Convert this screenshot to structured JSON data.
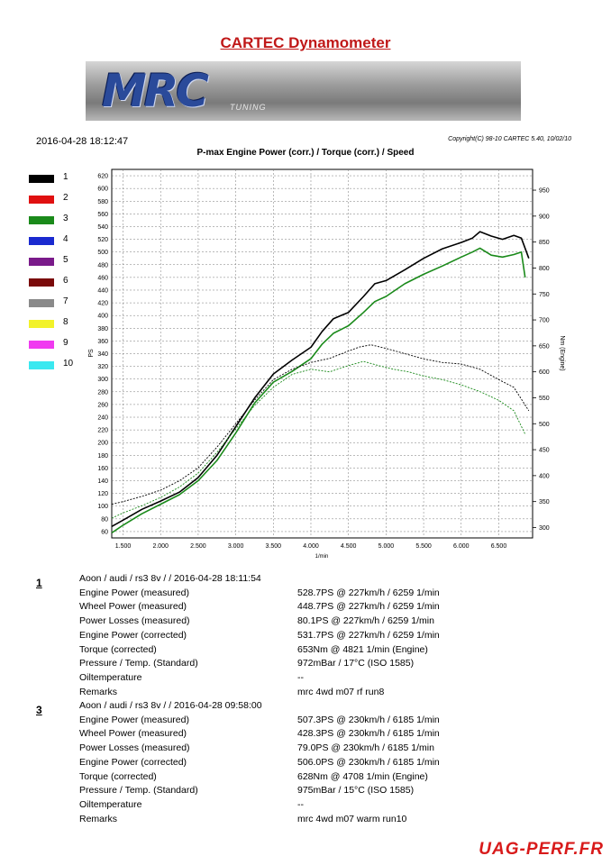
{
  "page": {
    "title": "CARTEC Dynamometer",
    "datetime": "2016-04-28 18:12:47",
    "copyright": "Copyright(C) 98-10 CARTEC 5.40, 10/02/10",
    "logo_text": "MRC",
    "logo_sub": "TUNING",
    "watermark": "UAG-PERF.FR"
  },
  "legend": {
    "items": [
      {
        "label": "1",
        "color": "#000000"
      },
      {
        "label": "2",
        "color": "#e01010"
      },
      {
        "label": "3",
        "color": "#1a8a1a"
      },
      {
        "label": "4",
        "color": "#1a2ad0"
      },
      {
        "label": "5",
        "color": "#7a1a8a"
      },
      {
        "label": "6",
        "color": "#7a0a0a"
      },
      {
        "label": "7",
        "color": "#8a8a8a"
      },
      {
        "label": "8",
        "color": "#f2f22a"
      },
      {
        "label": "9",
        "color": "#f03af0"
      },
      {
        "label": "10",
        "color": "#3ae8f0"
      }
    ]
  },
  "chart_data": {
    "type": "line",
    "title": "P-max Engine Power (corr.) / Torque (corr.) / Speed",
    "xlabel": "1/min",
    "ylabel": "PS",
    "y2label": "Nm (Engine)",
    "xlim": [
      1350,
      6950
    ],
    "ylim": [
      50,
      630
    ],
    "y2lim": [
      280,
      990
    ],
    "x_ticks": [
      "1.500",
      "2.000",
      "2.500",
      "3.000",
      "3.500",
      "4.000",
      "4.500",
      "5.000",
      "5.500",
      "6.000",
      "6.500"
    ],
    "x_tick_values": [
      1500,
      2000,
      2500,
      3000,
      3500,
      4000,
      4500,
      5000,
      5500,
      6000,
      6500
    ],
    "y_ticks": [
      60,
      80,
      100,
      120,
      140,
      160,
      180,
      200,
      220,
      240,
      260,
      280,
      300,
      320,
      340,
      360,
      380,
      400,
      420,
      440,
      460,
      480,
      500,
      520,
      540,
      560,
      580,
      600,
      620
    ],
    "y2_ticks": [
      300,
      350,
      400,
      450,
      500,
      550,
      600,
      650,
      700,
      750,
      800,
      850,
      900,
      950
    ],
    "grid": true,
    "series": [
      {
        "name": "1",
        "kind": "power",
        "axis": "left",
        "color": "#000000",
        "x": [
          1350,
          1500,
          1750,
          2000,
          2250,
          2500,
          2750,
          3000,
          3250,
          3500,
          3750,
          4000,
          4150,
          4300,
          4500,
          4700,
          4850,
          5000,
          5250,
          5500,
          5750,
          6000,
          6150,
          6250,
          6400,
          6550,
          6700,
          6800,
          6900
        ],
        "y": [
          68,
          78,
          95,
          108,
          122,
          145,
          180,
          225,
          270,
          308,
          330,
          350,
          375,
          395,
          405,
          430,
          450,
          455,
          472,
          490,
          505,
          515,
          522,
          532,
          525,
          520,
          526,
          522,
          490
        ]
      },
      {
        "name": "3",
        "kind": "power",
        "axis": "left",
        "color": "#1a8a1a",
        "x": [
          1350,
          1500,
          1750,
          2000,
          2250,
          2500,
          2750,
          3000,
          3250,
          3500,
          3750,
          4000,
          4150,
          4300,
          4500,
          4700,
          4850,
          5000,
          5250,
          5500,
          5750,
          6000,
          6150,
          6250,
          6400,
          6550,
          6700,
          6800,
          6850
        ],
        "y": [
          58,
          70,
          88,
          103,
          118,
          140,
          172,
          215,
          262,
          295,
          312,
          332,
          355,
          372,
          384,
          405,
          422,
          430,
          450,
          465,
          478,
          492,
          500,
          506,
          495,
          492,
          496,
          500,
          460
        ]
      },
      {
        "name": "1",
        "kind": "torque",
        "axis": "right",
        "color": "#000000",
        "x": [
          1350,
          1500,
          1750,
          2000,
          2250,
          2500,
          2750,
          3000,
          3250,
          3500,
          3750,
          4000,
          4250,
          4500,
          4650,
          4800,
          5000,
          5250,
          5500,
          5750,
          6000,
          6250,
          6500,
          6700,
          6900
        ],
        "y": [
          345,
          350,
          360,
          372,
          390,
          415,
          455,
          500,
          545,
          585,
          605,
          618,
          626,
          640,
          648,
          652,
          645,
          635,
          625,
          618,
          615,
          605,
          585,
          570,
          525
        ]
      },
      {
        "name": "3",
        "kind": "torque",
        "axis": "right",
        "color": "#1a8a1a",
        "x": [
          1350,
          1500,
          1750,
          2000,
          2250,
          2500,
          2750,
          3000,
          3250,
          3500,
          3750,
          4000,
          4250,
          4500,
          4700,
          4900,
          5100,
          5300,
          5500,
          5750,
          6000,
          6250,
          6500,
          6700,
          6850
        ],
        "y": [
          318,
          328,
          342,
          358,
          378,
          405,
          445,
          490,
          535,
          570,
          595,
          605,
          600,
          612,
          620,
          612,
          605,
          600,
          592,
          585,
          575,
          562,
          545,
          525,
          480
        ]
      }
    ]
  },
  "runs": [
    {
      "number": "1",
      "header": "Aoon / audi / rs3 8v /  / 2016-04-28 18:11:54",
      "rows": [
        {
          "key": "Engine Power (measured)",
          "value": "528.7PS @ 227km/h / 6259 1/min"
        },
        {
          "key": "Wheel Power (measured)",
          "value": "448.7PS @ 227km/h / 6259 1/min"
        },
        {
          "key": "Power Losses (measured)",
          "value": "80.1PS @ 227km/h / 6259 1/min"
        },
        {
          "key": "Engine Power (corrected)",
          "value": "531.7PS @ 227km/h / 6259 1/min"
        },
        {
          "key": "Torque (corrected)",
          "value": "653Nm @ 4821 1/min (Engine)"
        },
        {
          "key": "Pressure / Temp. (Standard)",
          "value": "972mBar / 17°C    (ISO 1585)"
        },
        {
          "key": "Oiltemperature",
          "value": "--"
        },
        {
          "key": "Remarks",
          "value": "mrc 4wd m07 rf run8"
        }
      ]
    },
    {
      "number": "3",
      "header": "Aoon / audi / rs3 8v /  / 2016-04-28 09:58:00",
      "rows": [
        {
          "key": "Engine Power (measured)",
          "value": "507.3PS @ 230km/h / 6185 1/min"
        },
        {
          "key": "Wheel Power (measured)",
          "value": "428.3PS @ 230km/h / 6185 1/min"
        },
        {
          "key": "Power Losses (measured)",
          "value": "79.0PS @ 230km/h / 6185 1/min"
        },
        {
          "key": "Engine Power (corrected)",
          "value": "506.0PS @ 230km/h / 6185 1/min"
        },
        {
          "key": "Torque (corrected)",
          "value": "628Nm @ 4708 1/min (Engine)"
        },
        {
          "key": "Pressure / Temp. (Standard)",
          "value": "975mBar / 15°C    (ISO 1585)"
        },
        {
          "key": "Oiltemperature",
          "value": "--"
        },
        {
          "key": "Remarks",
          "value": "mrc 4wd m07 warm run10"
        }
      ]
    }
  ]
}
